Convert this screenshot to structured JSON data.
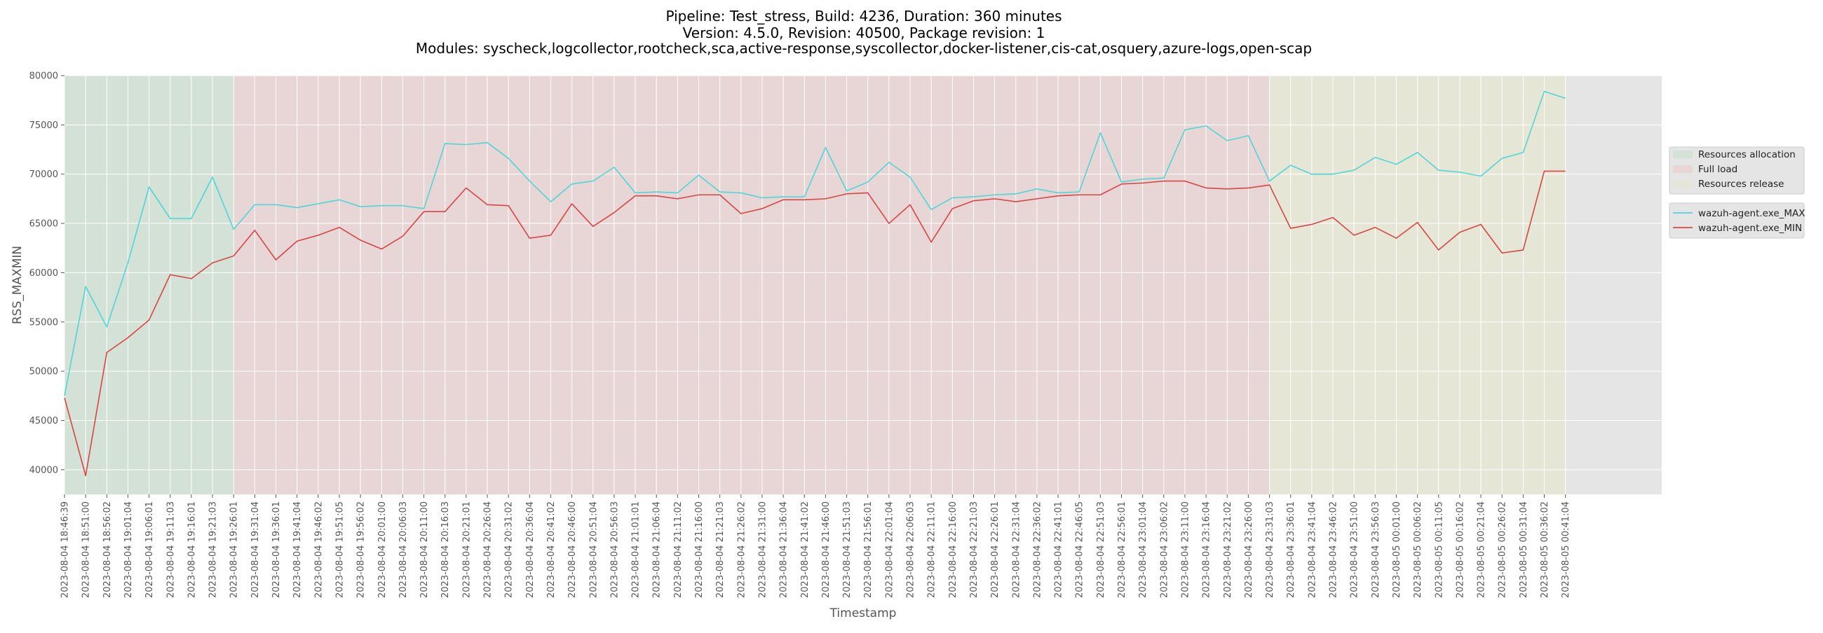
{
  "chart_data": {
    "type": "line",
    "title": [
      "Pipeline: Test_stress, Build: 4236, Duration: 360 minutes",
      "Version: 4.5.0, Revision: 40500, Package revision: 1",
      "Modules: syscheck,logcollector,rootcheck,sca,active-response,syscollector,docker-listener,cis-cat,osquery,azure-logs,open-scap"
    ],
    "xlabel": "Timestamp",
    "ylabel": "RSS_MAXMIN",
    "ylim": [
      37500,
      80000
    ],
    "yticks": [
      40000,
      45000,
      50000,
      55000,
      60000,
      65000,
      70000,
      75000,
      80000
    ],
    "grid": true,
    "legend_position": "right",
    "x": [
      "2023-08-04 18:46:39",
      "2023-08-04 18:51:00",
      "2023-08-04 18:56:02",
      "2023-08-04 19:01:04",
      "2023-08-04 19:06:01",
      "2023-08-04 19:11:03",
      "2023-08-04 19:16:01",
      "2023-08-04 19:21:03",
      "2023-08-04 19:26:01",
      "2023-08-04 19:31:04",
      "2023-08-04 19:36:01",
      "2023-08-04 19:41:04",
      "2023-08-04 19:46:02",
      "2023-08-04 19:51:05",
      "2023-08-04 19:56:02",
      "2023-08-04 20:01:00",
      "2023-08-04 20:06:03",
      "2023-08-04 20:11:00",
      "2023-08-04 20:16:03",
      "2023-08-04 20:21:01",
      "2023-08-04 20:26:04",
      "2023-08-04 20:31:02",
      "2023-08-04 20:36:04",
      "2023-08-04 20:41:02",
      "2023-08-04 20:46:00",
      "2023-08-04 20:51:04",
      "2023-08-04 20:56:03",
      "2023-08-04 21:01:01",
      "2023-08-04 21:06:04",
      "2023-08-04 21:11:02",
      "2023-08-04 21:16:00",
      "2023-08-04 21:21:03",
      "2023-08-04 21:26:02",
      "2023-08-04 21:31:00",
      "2023-08-04 21:36:04",
      "2023-08-04 21:41:02",
      "2023-08-04 21:46:00",
      "2023-08-04 21:51:03",
      "2023-08-04 21:56:01",
      "2023-08-04 22:01:04",
      "2023-08-04 22:06:03",
      "2023-08-04 22:11:01",
      "2023-08-04 22:16:00",
      "2023-08-04 22:21:03",
      "2023-08-04 22:26:01",
      "2023-08-04 22:31:04",
      "2023-08-04 22:36:02",
      "2023-08-04 22:41:01",
      "2023-08-04 22:46:05",
      "2023-08-04 22:51:03",
      "2023-08-04 22:56:01",
      "2023-08-04 23:01:04",
      "2023-08-04 23:06:02",
      "2023-08-04 23:11:00",
      "2023-08-04 23:16:04",
      "2023-08-04 23:21:02",
      "2023-08-04 23:26:00",
      "2023-08-04 23:31:03",
      "2023-08-04 23:36:01",
      "2023-08-04 23:41:04",
      "2023-08-04 23:46:02",
      "2023-08-04 23:51:00",
      "2023-08-04 23:56:03",
      "2023-08-05 00:01:00",
      "2023-08-05 00:06:02",
      "2023-08-05 00:11:05",
      "2023-08-05 00:16:02",
      "2023-08-05 00:21:04",
      "2023-08-05 00:26:02",
      "2023-08-05 00:31:04",
      "2023-08-05 00:36:02",
      "2023-08-05 00:41:04"
    ],
    "series": [
      {
        "name": "wazuh-agent.exe_MAX",
        "color": "#4fd6d6",
        "values": [
          47500,
          58600,
          54500,
          61000,
          68700,
          65500,
          65500,
          69700,
          64400,
          66900,
          66900,
          66600,
          67000,
          67400,
          66700,
          66800,
          66800,
          66500,
          73100,
          73000,
          73200,
          71600,
          69300,
          67200,
          69000,
          69300,
          70700,
          68100,
          68200,
          68100,
          69900,
          68200,
          68100,
          67600,
          67700,
          67700,
          72700,
          68300,
          69200,
          71200,
          69700,
          66400,
          67600,
          67700,
          67900,
          68000,
          68500,
          68100,
          68200,
          74200,
          69200,
          69500,
          69600,
          74500,
          74900,
          73400,
          73900,
          69300,
          70900,
          70000,
          70000,
          70400,
          71700,
          71000,
          72200,
          70400,
          70200,
          69800,
          71600,
          72200,
          78400,
          77700
        ]
      },
      {
        "name": "wazuh-agent.exe_MIN",
        "color": "#d94545",
        "values": [
          47300,
          39400,
          51900,
          53400,
          55200,
          59800,
          59400,
          61000,
          61700,
          64300,
          61300,
          63200,
          63800,
          64600,
          63300,
          62400,
          63700,
          66200,
          66200,
          68600,
          66900,
          66800,
          63500,
          63800,
          67000,
          64700,
          66100,
          67800,
          67800,
          67500,
          67900,
          67900,
          66000,
          66500,
          67400,
          67400,
          67500,
          68000,
          68100,
          65000,
          66900,
          63100,
          66500,
          67300,
          67500,
          67200,
          67500,
          67800,
          67900,
          67900,
          69000,
          69100,
          69300,
          69300,
          68600,
          68500,
          68600,
          68900,
          64500,
          64900,
          65600,
          63800,
          64600,
          63500,
          65100,
          62300,
          64100,
          64900,
          62000,
          62300,
          70300,
          70300
        ]
      }
    ],
    "phases": [
      {
        "name": "Resources allocation",
        "start_index": 0,
        "end_index": 8,
        "color": "#d3e1d6"
      },
      {
        "name": "Full load",
        "start_index": 8,
        "end_index": 57,
        "color": "#e8d5d6"
      },
      {
        "name": "Resources release",
        "start_index": 57,
        "end_index": 71,
        "color": "#e6e6d6"
      }
    ]
  }
}
